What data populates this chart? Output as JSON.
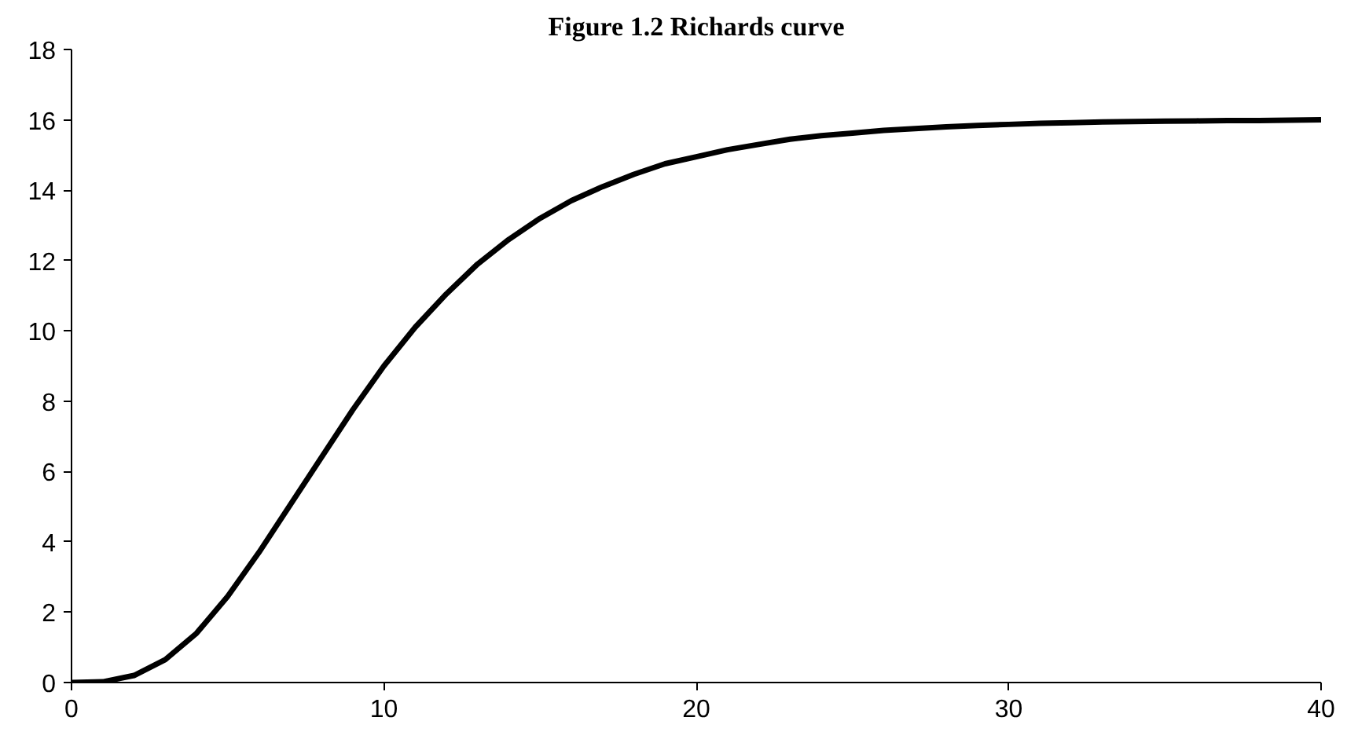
{
  "chart_data": {
    "type": "line",
    "title": "Figure 1.2 Richards curve",
    "x": [
      0,
      1,
      2,
      3,
      4,
      5,
      6,
      7,
      8,
      9,
      10,
      11,
      12,
      13,
      14,
      15,
      16,
      17,
      18,
      19,
      20,
      21,
      22,
      23,
      24,
      25,
      26,
      27,
      28,
      29,
      30,
      31,
      32,
      33,
      34,
      35,
      36,
      37,
      38,
      39,
      40
    ],
    "series": [
      {
        "color": "#000000",
        "values": [
          0,
          0.02,
          0.2,
          0.65,
          1.4,
          2.45,
          3.7,
          5.05,
          6.4,
          7.75,
          9.0,
          10.1,
          11.05,
          11.9,
          12.6,
          13.2,
          13.7,
          14.1,
          14.45,
          14.75,
          14.95,
          15.15,
          15.3,
          15.45,
          15.55,
          15.62,
          15.7,
          15.75,
          15.8,
          15.84,
          15.87,
          15.9,
          15.92,
          15.94,
          15.95,
          15.96,
          15.97,
          15.98,
          15.98,
          15.99,
          16.0
        ]
      }
    ],
    "xlim": [
      0,
      40
    ],
    "xticks": [
      0,
      10,
      20,
      30,
      40
    ],
    "ylim": [
      0,
      18
    ],
    "yticks": [
      0,
      2,
      4,
      6,
      8,
      10,
      12,
      14,
      16,
      18
    ],
    "grid": false,
    "line_style": "solid"
  }
}
